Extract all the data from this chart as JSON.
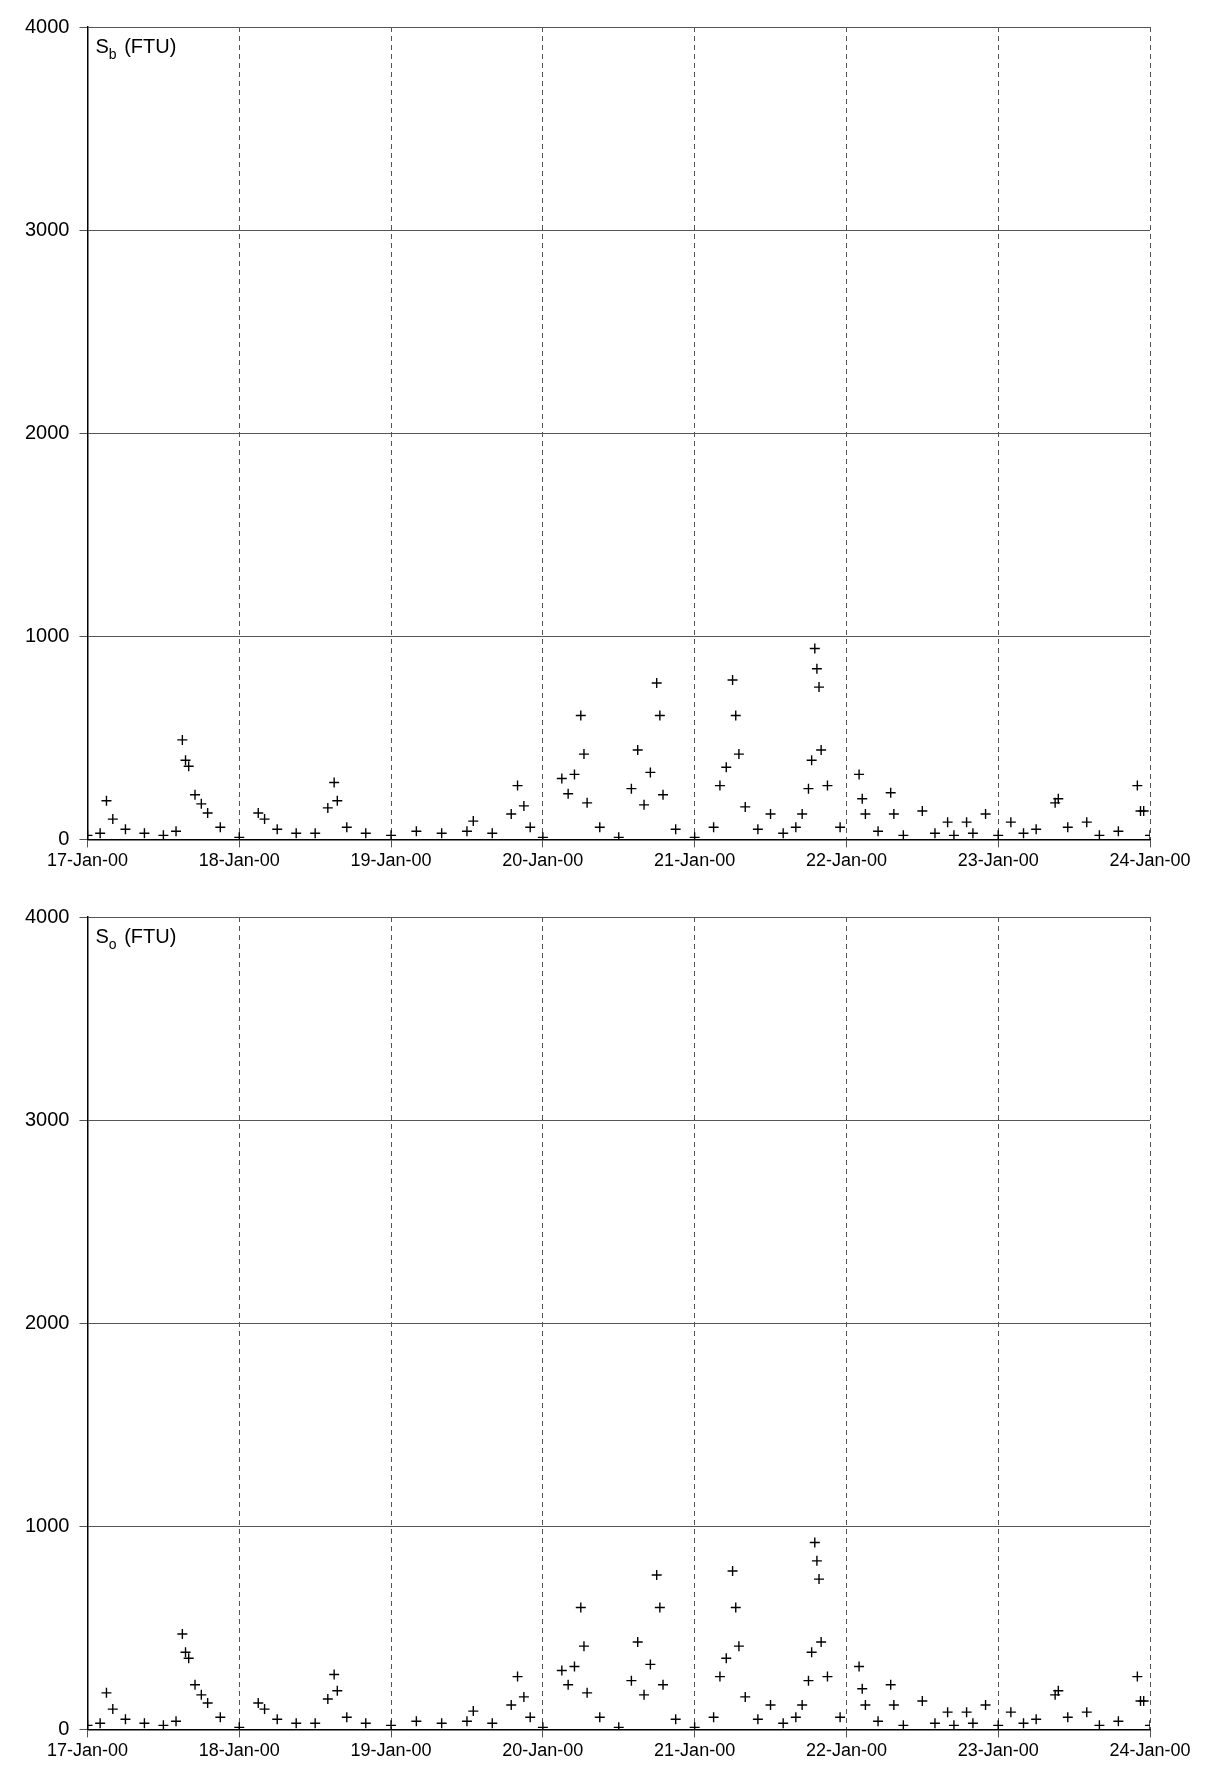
{
  "chart_data": [
    {
      "type": "scatter",
      "ylabel": "S$_{b}$ (FTU)",
      "marker": "cross",
      "grid": true,
      "legend": false,
      "xlim": [
        "2000-01-17",
        "2000-01-24"
      ],
      "ylim": [
        0,
        4000
      ],
      "yticks": [
        0,
        1000,
        2000,
        3000,
        4000
      ],
      "xticks": [
        {
          "value": "2000-01-17",
          "label": "17-Jan-00"
        },
        {
          "value": "2000-01-18",
          "label": "18-Jan-00"
        },
        {
          "value": "2000-01-19",
          "label": "19-Jan-00"
        },
        {
          "value": "2000-01-20",
          "label": "20-Jan-00"
        },
        {
          "value": "2000-01-21",
          "label": "21-Jan-00"
        },
        {
          "value": "2000-01-22",
          "label": "22-Jan-00"
        },
        {
          "value": "2000-01-23",
          "label": "23-Jan-00"
        },
        {
          "value": "2000-01-24",
          "label": "24-Jan-00"
        }
      ],
      "series": [
        {
          "color": "#000000",
          "x": [
            "2000-01-17T00:00",
            "2000-01-17T02:00",
            "2000-01-17T03:00",
            "2000-01-17T04:00",
            "2000-01-17T06:00",
            "2000-01-17T09:00",
            "2000-01-17T12:00",
            "2000-01-17T14:00",
            "2000-01-17T15:00",
            "2000-01-17T15:30",
            "2000-01-17T16:00",
            "2000-01-17T17:00",
            "2000-01-17T18:00",
            "2000-01-17T19:00",
            "2000-01-17T21:00",
            "2000-01-18T00:00",
            "2000-01-18T03:00",
            "2000-01-18T04:00",
            "2000-01-18T06:00",
            "2000-01-18T09:00",
            "2000-01-18T12:00",
            "2000-01-18T14:00",
            "2000-01-18T15:00",
            "2000-01-18T15:30",
            "2000-01-18T17:00",
            "2000-01-18T20:00",
            "2000-01-19T00:00",
            "2000-01-19T04:00",
            "2000-01-19T08:00",
            "2000-01-19T12:00",
            "2000-01-19T13:00",
            "2000-01-19T16:00",
            "2000-01-19T19:00",
            "2000-01-19T20:00",
            "2000-01-19T21:00",
            "2000-01-19T22:00",
            "2000-01-20T00:00",
            "2000-01-20T03:00",
            "2000-01-20T04:00",
            "2000-01-20T05:00",
            "2000-01-20T06:00",
            "2000-01-20T06:30",
            "2000-01-20T07:00",
            "2000-01-20T09:00",
            "2000-01-20T12:00",
            "2000-01-20T14:00",
            "2000-01-20T15:00",
            "2000-01-20T16:00",
            "2000-01-20T17:00",
            "2000-01-20T18:00",
            "2000-01-20T18:30",
            "2000-01-20T19:00",
            "2000-01-20T21:00",
            "2000-01-21T00:00",
            "2000-01-21T03:00",
            "2000-01-21T04:00",
            "2000-01-21T05:00",
            "2000-01-21T06:00",
            "2000-01-21T06:30",
            "2000-01-21T07:00",
            "2000-01-21T08:00",
            "2000-01-21T10:00",
            "2000-01-21T12:00",
            "2000-01-21T14:00",
            "2000-01-21T16:00",
            "2000-01-21T17:00",
            "2000-01-21T18:00",
            "2000-01-21T18:30",
            "2000-01-21T19:00",
            "2000-01-21T19:20",
            "2000-01-21T19:40",
            "2000-01-21T20:00",
            "2000-01-21T21:00",
            "2000-01-21T23:00",
            "2000-01-22T02:00",
            "2000-01-22T02:30",
            "2000-01-22T03:00",
            "2000-01-22T05:00",
            "2000-01-22T07:00",
            "2000-01-22T07:30",
            "2000-01-22T09:00",
            "2000-01-22T12:00",
            "2000-01-22T14:00",
            "2000-01-22T16:00",
            "2000-01-22T17:00",
            "2000-01-22T19:00",
            "2000-01-22T20:00",
            "2000-01-22T22:00",
            "2000-01-23T00:00",
            "2000-01-23T02:00",
            "2000-01-23T04:00",
            "2000-01-23T06:00",
            "2000-01-23T09:00",
            "2000-01-23T09:30",
            "2000-01-23T11:00",
            "2000-01-23T14:00",
            "2000-01-23T16:00",
            "2000-01-23T19:00",
            "2000-01-23T22:00",
            "2000-01-23T22:30",
            "2000-01-23T23:00",
            "2000-01-24T00:00"
          ],
          "values": [
            20,
            30,
            190,
            100,
            50,
            30,
            20,
            40,
            490,
            390,
            360,
            220,
            175,
            130,
            60,
            10,
            130,
            100,
            50,
            30,
            30,
            155,
            280,
            190,
            60,
            30,
            20,
            40,
            30,
            40,
            90,
            30,
            125,
            265,
            165,
            60,
            10,
            300,
            225,
            320,
            610,
            420,
            180,
            60,
            10,
            250,
            440,
            170,
            330,
            770,
            610,
            220,
            50,
            10,
            60,
            265,
            355,
            785,
            610,
            420,
            160,
            50,
            125,
            30,
            60,
            125,
            250,
            390,
            940,
            840,
            750,
            440,
            265,
            60,
            320,
            200,
            125,
            40,
            230,
            125,
            20,
            140,
            30,
            85,
            20,
            85,
            30,
            125,
            20,
            85,
            30,
            50,
            180,
            200,
            60,
            85,
            20,
            40,
            265,
            140,
            140,
            20
          ]
        }
      ]
    },
    {
      "type": "scatter",
      "ylabel": "S$_{o}$ (FTU)",
      "marker": "cross",
      "grid": true,
      "legend": false,
      "xlim": [
        "2000-01-17",
        "2000-01-24"
      ],
      "ylim": [
        0,
        4000
      ],
      "yticks": [
        0,
        1000,
        2000,
        3000,
        4000
      ],
      "xticks": [
        {
          "value": "2000-01-17",
          "label": "17-Jan-00"
        },
        {
          "value": "2000-01-18",
          "label": "18-Jan-00"
        },
        {
          "value": "2000-01-19",
          "label": "19-Jan-00"
        },
        {
          "value": "2000-01-20",
          "label": "20-Jan-00"
        },
        {
          "value": "2000-01-21",
          "label": "21-Jan-00"
        },
        {
          "value": "2000-01-22",
          "label": "22-Jan-00"
        },
        {
          "value": "2000-01-23",
          "label": "23-Jan-00"
        },
        {
          "value": "2000-01-24",
          "label": "24-Jan-00"
        }
      ],
      "series": [
        {
          "color": "#000000",
          "x": [
            "2000-01-17T00:00",
            "2000-01-17T02:00",
            "2000-01-17T03:00",
            "2000-01-17T04:00",
            "2000-01-17T06:00",
            "2000-01-17T09:00",
            "2000-01-17T12:00",
            "2000-01-17T14:00",
            "2000-01-17T15:00",
            "2000-01-17T15:30",
            "2000-01-17T16:00",
            "2000-01-17T17:00",
            "2000-01-17T18:00",
            "2000-01-17T19:00",
            "2000-01-17T21:00",
            "2000-01-18T00:00",
            "2000-01-18T03:00",
            "2000-01-18T04:00",
            "2000-01-18T06:00",
            "2000-01-18T09:00",
            "2000-01-18T12:00",
            "2000-01-18T14:00",
            "2000-01-18T15:00",
            "2000-01-18T15:30",
            "2000-01-18T17:00",
            "2000-01-18T20:00",
            "2000-01-19T00:00",
            "2000-01-19T04:00",
            "2000-01-19T08:00",
            "2000-01-19T12:00",
            "2000-01-19T13:00",
            "2000-01-19T16:00",
            "2000-01-19T19:00",
            "2000-01-19T20:00",
            "2000-01-19T21:00",
            "2000-01-19T22:00",
            "2000-01-20T00:00",
            "2000-01-20T03:00",
            "2000-01-20T04:00",
            "2000-01-20T05:00",
            "2000-01-20T06:00",
            "2000-01-20T06:30",
            "2000-01-20T07:00",
            "2000-01-20T09:00",
            "2000-01-20T12:00",
            "2000-01-20T14:00",
            "2000-01-20T15:00",
            "2000-01-20T16:00",
            "2000-01-20T17:00",
            "2000-01-20T18:00",
            "2000-01-20T18:30",
            "2000-01-20T19:00",
            "2000-01-20T21:00",
            "2000-01-21T00:00",
            "2000-01-21T03:00",
            "2000-01-21T04:00",
            "2000-01-21T05:00",
            "2000-01-21T06:00",
            "2000-01-21T06:30",
            "2000-01-21T07:00",
            "2000-01-21T08:00",
            "2000-01-21T10:00",
            "2000-01-21T12:00",
            "2000-01-21T14:00",
            "2000-01-21T16:00",
            "2000-01-21T17:00",
            "2000-01-21T18:00",
            "2000-01-21T18:30",
            "2000-01-21T19:00",
            "2000-01-21T19:20",
            "2000-01-21T19:40",
            "2000-01-21T20:00",
            "2000-01-21T21:00",
            "2000-01-21T23:00",
            "2000-01-22T02:00",
            "2000-01-22T02:30",
            "2000-01-22T03:00",
            "2000-01-22T05:00",
            "2000-01-22T07:00",
            "2000-01-22T07:30",
            "2000-01-22T09:00",
            "2000-01-22T12:00",
            "2000-01-22T14:00",
            "2000-01-22T16:00",
            "2000-01-22T17:00",
            "2000-01-22T19:00",
            "2000-01-22T20:00",
            "2000-01-22T22:00",
            "2000-01-23T00:00",
            "2000-01-23T02:00",
            "2000-01-23T04:00",
            "2000-01-23T06:00",
            "2000-01-23T09:00",
            "2000-01-23T09:30",
            "2000-01-23T11:00",
            "2000-01-23T14:00",
            "2000-01-23T16:00",
            "2000-01-23T19:00",
            "2000-01-23T22:00",
            "2000-01-23T22:30",
            "2000-01-23T23:00",
            "2000-01-24T00:00"
          ],
          "values": [
            20,
            30,
            180,
            100,
            50,
            30,
            20,
            40,
            470,
            380,
            350,
            220,
            170,
            130,
            60,
            10,
            130,
            100,
            50,
            30,
            30,
            150,
            270,
            190,
            60,
            30,
            20,
            40,
            30,
            40,
            90,
            30,
            120,
            260,
            160,
            60,
            10,
            290,
            220,
            310,
            600,
            410,
            180,
            60,
            10,
            240,
            430,
            170,
            320,
            760,
            600,
            220,
            50,
            10,
            60,
            260,
            350,
            780,
            600,
            410,
            160,
            50,
            120,
            30,
            60,
            120,
            240,
            380,
            920,
            830,
            740,
            430,
            260,
            60,
            310,
            200,
            120,
            40,
            220,
            120,
            20,
            140,
            30,
            85,
            20,
            85,
            30,
            120,
            20,
            85,
            30,
            50,
            170,
            190,
            60,
            85,
            20,
            40,
            260,
            140,
            140,
            20
          ]
        }
      ]
    }
  ]
}
